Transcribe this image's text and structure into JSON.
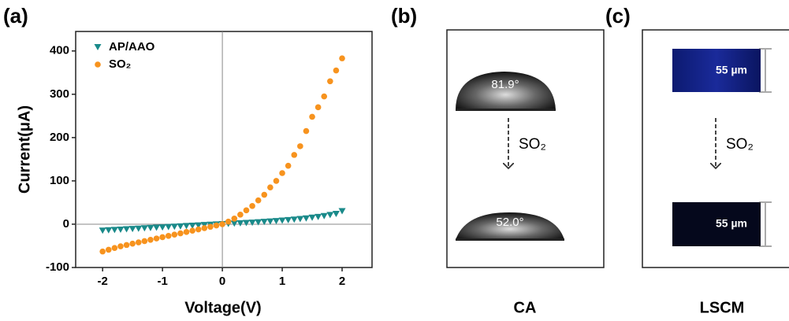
{
  "chart_data": {
    "type": "scatter",
    "panel_label": "(a)",
    "x_label": "Voltage(V)",
    "y_label": "Current(μA)",
    "x": [
      -2,
      -1.9,
      -1.8,
      -1.7,
      -1.6,
      -1.5,
      -1.4,
      -1.3,
      -1.2,
      -1.1,
      -1,
      -0.9,
      -0.8,
      -0.7,
      -0.6,
      -0.5,
      -0.4,
      -0.3,
      -0.2,
      -0.1,
      0,
      0.1,
      0.2,
      0.3,
      0.4,
      0.5,
      0.6,
      0.7,
      0.8,
      0.9,
      1,
      1.1,
      1.2,
      1.3,
      1.4,
      1.5,
      1.6,
      1.7,
      1.8,
      1.9,
      2
    ],
    "series": [
      {
        "name": "AP/AAO",
        "color": "#1a8a8a",
        "marker": "triangle-down",
        "values": [
          -15,
          -14.2,
          -13.5,
          -12.7,
          -12,
          -11.2,
          -10.5,
          -9.7,
          -9,
          -8.2,
          -7.5,
          -6.7,
          -6,
          -5.2,
          -4.5,
          -3.7,
          -3,
          -2.2,
          -1.5,
          -0.7,
          0,
          0.6,
          1.2,
          1.9,
          2.6,
          3.4,
          4.2,
          5.1,
          6,
          7,
          8,
          9.2,
          10.4,
          11.8,
          13.2,
          14.8,
          16.6,
          18.6,
          21,
          23.5,
          30
        ]
      },
      {
        "name": "SO₂",
        "color": "#f7931e",
        "marker": "circle",
        "values": [
          -63,
          -59,
          -55,
          -51,
          -48,
          -45,
          -42,
          -39,
          -36,
          -33,
          -30,
          -27,
          -24,
          -21,
          -18,
          -15,
          -12,
          -9,
          -6,
          -3,
          0,
          6,
          13,
          22,
          32,
          42,
          55,
          68,
          85,
          100,
          118,
          135,
          160,
          180,
          215,
          248,
          270,
          295,
          330,
          355,
          383
        ]
      }
    ],
    "xlim": [
      -2.45,
      2.5
    ],
    "xticks": [
      -2,
      -1,
      0,
      1,
      2
    ],
    "ylim": [
      -100,
      445
    ],
    "yticks": [
      -100,
      0,
      100,
      200,
      300,
      400
    ],
    "zero_lines": true,
    "legend": "upper-left"
  },
  "panels": [
    {
      "label": "(b)",
      "before_text": "81.9°",
      "arrow_text": "SO₂",
      "after_text": "52.0°",
      "caption": "CA"
    },
    {
      "label": "(c)",
      "before_text": "55 µm",
      "arrow_text": "SO₂",
      "after_text": "55 µm",
      "caption": "LSCM"
    }
  ]
}
